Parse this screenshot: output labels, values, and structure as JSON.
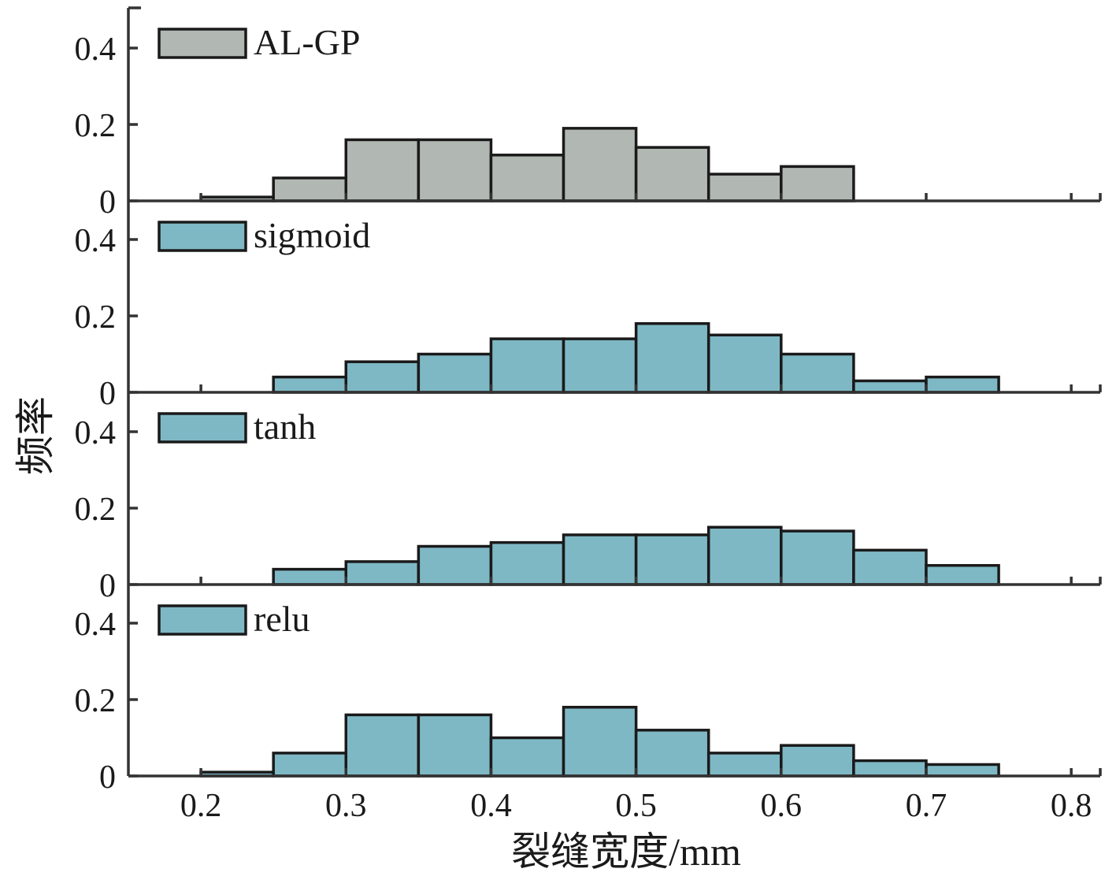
{
  "chart_data": {
    "type": "bar",
    "xlabel": "裂缝宽度/mm",
    "ylabel": "频率",
    "xlim": [
      0.15,
      0.82
    ],
    "ylim": [
      0,
      0.5
    ],
    "x_ticks": [
      "0.2",
      "0.3",
      "0.4",
      "0.5",
      "0.6",
      "0.7",
      "0.8"
    ],
    "y_ticks": [
      "0",
      "0.2",
      "0.4"
    ],
    "bin_edges": [
      0.2,
      0.25,
      0.3,
      0.35,
      0.4,
      0.45,
      0.5,
      0.55,
      0.6,
      0.65,
      0.7,
      0.75
    ],
    "grid": false,
    "legend_position": "top-left",
    "series": [
      {
        "name": "AL-GP",
        "color": "#b1b7b3",
        "values": [
          0.01,
          0.06,
          0.16,
          0.16,
          0.12,
          0.19,
          0.14,
          0.07,
          0.09,
          0,
          0
        ]
      },
      {
        "name": "sigmoid",
        "color": "#7fb8c5",
        "values": [
          0,
          0.04,
          0.08,
          0.1,
          0.14,
          0.14,
          0.18,
          0.15,
          0.1,
          0.03,
          0.04
        ]
      },
      {
        "name": "tanh",
        "color": "#7fb8c5",
        "values": [
          0,
          0.04,
          0.06,
          0.1,
          0.11,
          0.13,
          0.13,
          0.15,
          0.14,
          0.09,
          0.05
        ]
      },
      {
        "name": "relu",
        "color": "#7fb8c5",
        "values": [
          0.01,
          0.06,
          0.16,
          0.16,
          0.1,
          0.18,
          0.12,
          0.06,
          0.08,
          0.04,
          0.03
        ]
      }
    ]
  }
}
